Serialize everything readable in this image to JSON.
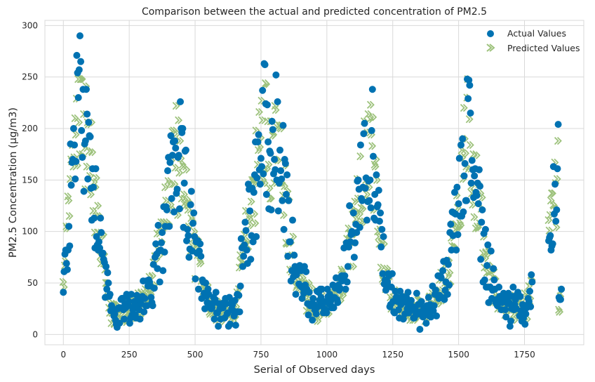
{
  "chart_data": {
    "type": "scatter",
    "title": "Comparison between the actual and predicted concentration of PM2.5",
    "xlabel": "Serial of Observed days",
    "ylabel": "PM2.5 Concentration (µg/m3)",
    "xlim": [
      -70,
      1975
    ],
    "ylim": [
      -10,
      305
    ],
    "xticks": [
      0,
      250,
      500,
      750,
      1000,
      1250,
      1500,
      1750
    ],
    "yticks": [
      0,
      50,
      100,
      150,
      200,
      250,
      300
    ],
    "grid": true,
    "legend_position": "top-right",
    "series": [
      {
        "name": "Actual Values",
        "marker": "circle",
        "color": "#0072b2",
        "values": []
      },
      {
        "name": "Predicted Values",
        "marker": "x-arrow",
        "color": "#9dc27c",
        "values": []
      }
    ],
    "x": []
  },
  "colors": {
    "actual": "#0072b2",
    "predicted": "#9dc27c",
    "grid": "#d9d9d9"
  }
}
